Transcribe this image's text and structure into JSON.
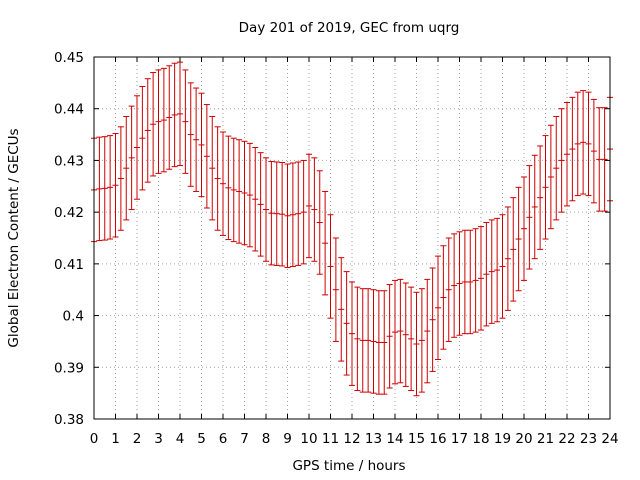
{
  "chart_data": {
    "type": "scatter",
    "title": "Day 201 of 2019, GEC from uqrg",
    "xlabel": "GPS time / hours",
    "ylabel": "Global Electron Content / GECUs",
    "xlim": [
      0,
      24
    ],
    "ylim": [
      0.38,
      0.45
    ],
    "xticks": [
      "0",
      "1",
      "2",
      "3",
      "4",
      "5",
      "6",
      "7",
      "8",
      "9",
      "10",
      "11",
      "12",
      "13",
      "14",
      "15",
      "16",
      "17",
      "18",
      "19",
      "20",
      "21",
      "22",
      "23",
      "24"
    ],
    "yticks": [
      "0.38",
      "0.39",
      "0.4",
      "0.41",
      "0.42",
      "0.43",
      "0.44",
      "0.45"
    ],
    "grid": true,
    "legend": "none",
    "error_bar": 0.01,
    "color": "#cc0000",
    "series": [
      {
        "x": [
          0.0,
          0.25,
          0.5,
          0.75,
          1.0,
          1.25,
          1.5,
          1.75,
          2.0,
          2.25,
          2.5,
          2.75,
          3.0,
          3.25,
          3.5,
          3.75,
          4.0,
          4.25,
          4.5,
          4.75,
          5.0,
          5.25,
          5.5,
          5.75,
          6.0,
          6.25,
          6.5,
          6.75,
          7.0,
          7.25,
          7.5,
          7.75,
          8.0,
          8.25,
          8.5,
          8.75,
          9.0,
          9.25,
          9.5,
          9.75,
          10.0,
          10.25,
          10.5,
          10.75,
          11.0,
          11.25,
          11.5,
          11.75,
          12.0,
          12.25,
          12.5,
          12.75,
          13.0,
          13.25,
          13.5,
          13.75,
          14.0,
          14.25,
          14.5,
          14.75,
          15.0,
          15.25,
          15.5,
          15.75,
          16.0,
          16.25,
          16.5,
          16.75,
          17.0,
          17.25,
          17.5,
          17.75,
          18.0,
          18.25,
          18.5,
          18.75,
          19.0,
          19.25,
          19.5,
          19.75,
          20.0,
          20.25,
          20.5,
          20.75,
          21.0,
          21.25,
          21.5,
          21.75,
          22.0,
          22.25,
          22.5,
          22.75,
          23.0,
          23.25,
          23.5,
          23.75,
          24.0
        ],
        "y": [
          0.4243,
          0.4245,
          0.4246,
          0.4248,
          0.4252,
          0.4265,
          0.4285,
          0.4305,
          0.4325,
          0.4343,
          0.4358,
          0.437,
          0.4375,
          0.4378,
          0.4383,
          0.4388,
          0.439,
          0.4375,
          0.435,
          0.434,
          0.433,
          0.4308,
          0.4285,
          0.4265,
          0.4255,
          0.4247,
          0.4243,
          0.424,
          0.4237,
          0.4233,
          0.4225,
          0.4215,
          0.4205,
          0.4198,
          0.4197,
          0.4196,
          0.4193,
          0.4195,
          0.4197,
          0.42,
          0.4212,
          0.4205,
          0.418,
          0.414,
          0.4095,
          0.405,
          0.4012,
          0.3985,
          0.3965,
          0.3955,
          0.3952,
          0.3952,
          0.395,
          0.3948,
          0.3948,
          0.396,
          0.3968,
          0.397,
          0.3963,
          0.3955,
          0.3945,
          0.3952,
          0.397,
          0.3992,
          0.4015,
          0.4035,
          0.405,
          0.4058,
          0.4062,
          0.4065,
          0.4065,
          0.4068,
          0.4072,
          0.408,
          0.4085,
          0.4088,
          0.4095,
          0.411,
          0.4128,
          0.4148,
          0.4168,
          0.419,
          0.421,
          0.4228,
          0.4248,
          0.4268,
          0.4285,
          0.43,
          0.4312,
          0.4322,
          0.4332,
          0.4335,
          0.4332,
          0.4318,
          0.4302,
          0.4302,
          0.4322
        ]
      }
    ]
  }
}
